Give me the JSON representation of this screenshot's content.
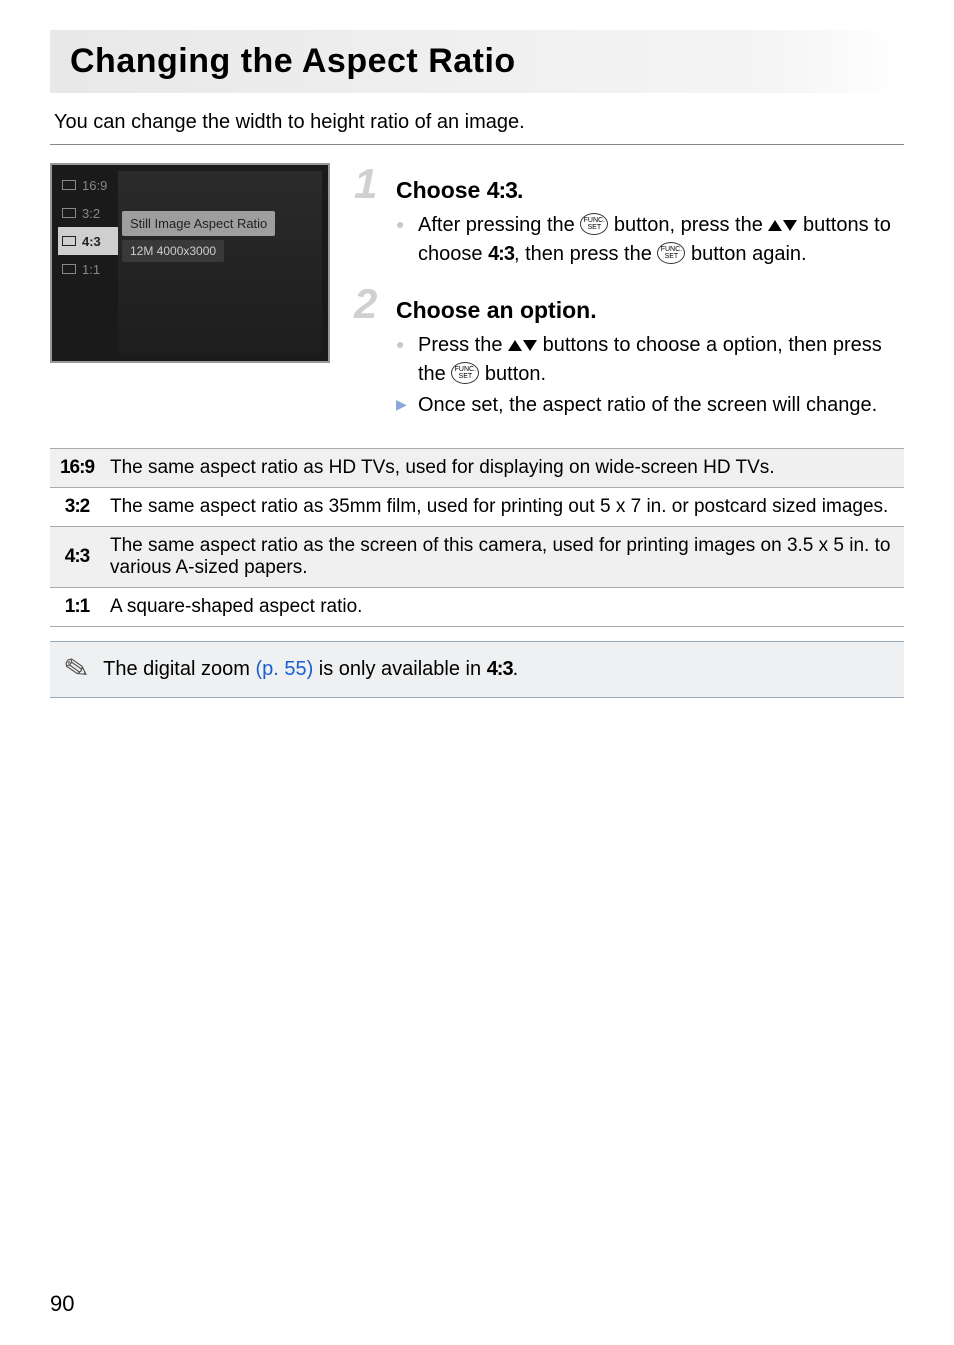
{
  "title": "Changing the Aspect Ratio",
  "intro": "You can change the width to height ratio of an image.",
  "screenshot": {
    "items": [
      "16:9",
      "3:2",
      "4:3",
      "1:1"
    ],
    "selected_index": 2,
    "label": "Still Image Aspect Ratio",
    "sub": "12M 4000x3000"
  },
  "steps": [
    {
      "num": "1",
      "title_pre": "Choose ",
      "title_ratio": "4:3",
      "title_post": ".",
      "bullets": [
        {
          "type": "dot",
          "parts": [
            "After pressing the ",
            "FUNC",
            " button, press the ",
            "UPDOWN",
            " buttons to choose ",
            "RATIO43",
            ", then press the ",
            "FUNC",
            " button again."
          ]
        }
      ]
    },
    {
      "num": "2",
      "title_pre": "Choose an option.",
      "title_ratio": "",
      "title_post": "",
      "bullets": [
        {
          "type": "dot",
          "parts": [
            "Press the ",
            "UPDOWN",
            " buttons to choose a option, then press the ",
            "FUNC",
            " button."
          ]
        },
        {
          "type": "arrow",
          "parts": [
            "Once set, the aspect ratio of the screen will change."
          ]
        }
      ]
    }
  ],
  "table": [
    {
      "key": "16:9",
      "shade": true,
      "desc": "The same aspect ratio as HD TVs, used for displaying on wide-screen HD TVs."
    },
    {
      "key": "3:2",
      "shade": false,
      "desc": "The same aspect ratio as 35mm film, used for printing out 5 x 7 in. or postcard sized images."
    },
    {
      "key": "4:3",
      "shade": true,
      "desc": "The same aspect ratio as the screen of this camera, used for printing images on 3.5 x 5 in. to various A-sized papers."
    },
    {
      "key": "1:1",
      "shade": false,
      "desc": "A square-shaped aspect ratio."
    }
  ],
  "note": {
    "pre": "The digital zoom ",
    "link": "(p. 55)",
    "mid": " is only available in ",
    "ratio": "4:3",
    "post": "."
  },
  "page": "90",
  "colors": {
    "link": "#1a5fd0",
    "step_num": "#d0d0d0",
    "note_bg": "#eef0f2",
    "note_border": "#9ab"
  }
}
